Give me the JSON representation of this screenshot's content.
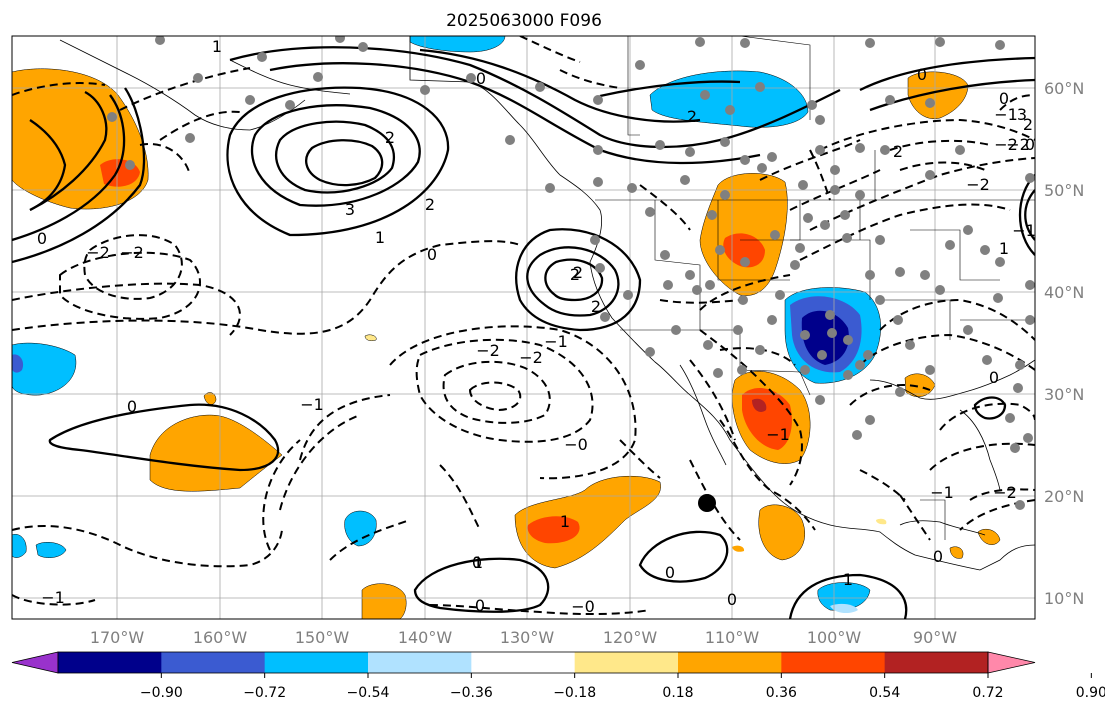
{
  "title": "2025063000 F096",
  "longitude_labels": [
    "170°W",
    "160°W",
    "150°W",
    "140°W",
    "130°W",
    "120°W",
    "110°W",
    "100°W",
    "90°W"
  ],
  "latitude_labels": [
    "60°N",
    "50°N",
    "40°N",
    "30°N",
    "20°N",
    "10°N"
  ],
  "colorbar": {
    "tick_labels": [
      "−0.90",
      "−0.72",
      "−0.54",
      "−0.36",
      "−0.18",
      "0.18",
      "0.36",
      "0.54",
      "0.72",
      "0.90"
    ],
    "colors": [
      "#9932cc",
      "#00008b",
      "#3b5bd1",
      "#00bfff",
      "#b0e2ff",
      "#ffffff",
      "#ffe88a",
      "#ffa500",
      "#ff4500",
      "#b22222",
      "#ff88aa"
    ]
  },
  "contour_labels": [
    "1",
    "0",
    "2",
    "3",
    "2",
    "1",
    "0",
    "2",
    "−2",
    "−2",
    "0",
    "2",
    "2",
    "−2",
    "−2",
    "−1",
    "−1",
    "0",
    "−0",
    "1",
    "0",
    "0",
    "−0",
    "0",
    "1",
    "−1",
    "−1",
    "0",
    "−2",
    "−1",
    "0",
    "0",
    "−1",
    "−2",
    "0",
    "2",
    "0",
    "1",
    "2",
    "−1",
    "1",
    "3",
    "2",
    "0",
    "−2",
    "−2",
    "0"
  ]
}
